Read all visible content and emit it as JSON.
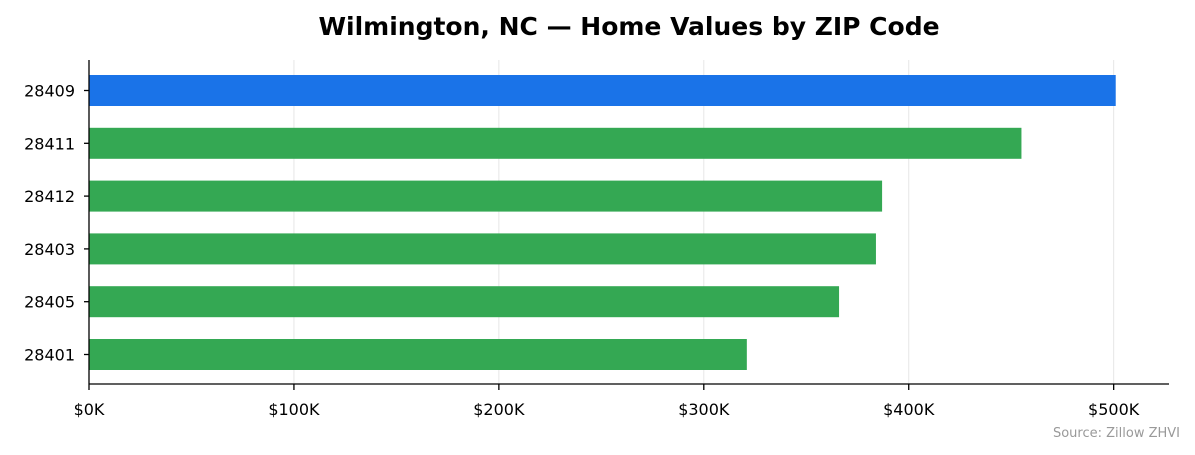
{
  "chart_data": {
    "type": "bar",
    "orientation": "horizontal",
    "title": "Wilmington, NC — Home Values by ZIP Code",
    "source": "Source: Zillow ZHVI",
    "categories": [
      "28409",
      "28411",
      "28412",
      "28403",
      "28405",
      "28401"
    ],
    "values": [
      501000,
      455000,
      387000,
      384000,
      366000,
      321000
    ],
    "highlight": "28409",
    "colors": {
      "highlight": "#1a73e8",
      "default": "#34a853"
    },
    "xlim": [
      0,
      527000
    ],
    "xticks": [
      0,
      100000,
      200000,
      300000,
      400000,
      500000
    ],
    "xtick_labels": [
      "$0K",
      "$100K",
      "$200K",
      "$300K",
      "$400K",
      "$500K"
    ],
    "grid": "x-only",
    "legend": "none"
  }
}
